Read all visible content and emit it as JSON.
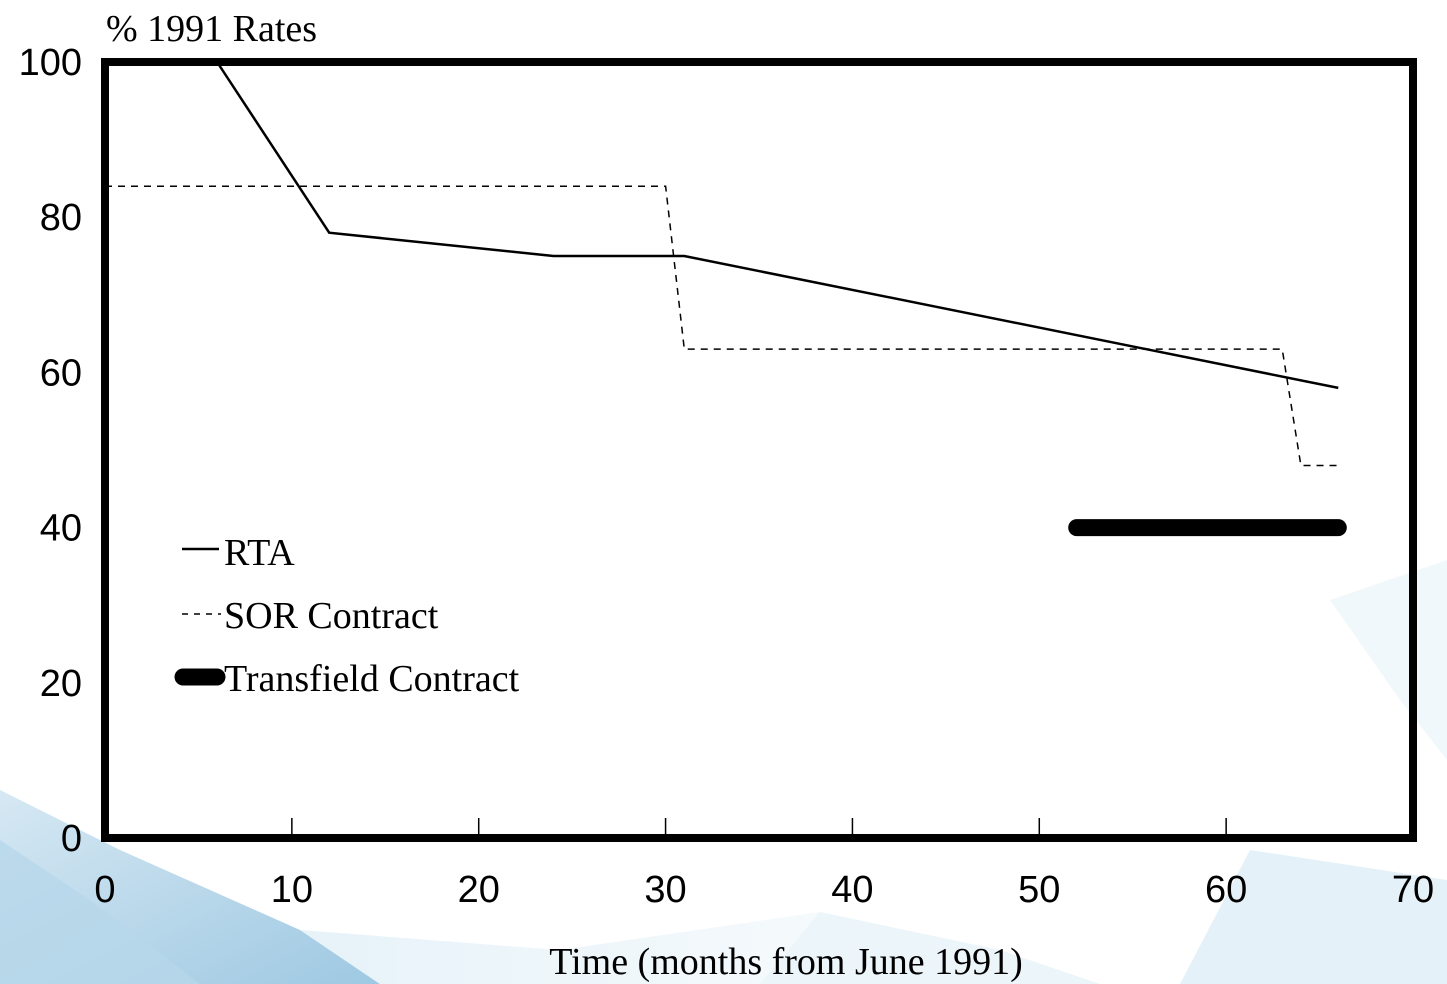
{
  "chart_data": {
    "type": "line",
    "title": "",
    "ylabel": "% 1991 Rates",
    "xlabel": "Time (months from June 1991)",
    "xlim": [
      0,
      70
    ],
    "ylim": [
      0,
      100
    ],
    "xticks": [
      0,
      10,
      20,
      30,
      40,
      50,
      60,
      70
    ],
    "yticks": [
      0,
      20,
      40,
      60,
      80,
      100
    ],
    "grid": false,
    "legend": {
      "placement": "lower-left",
      "entries": [
        "RTA",
        "SOR Contract",
        "Transfield Contract"
      ]
    },
    "series": [
      {
        "name": "RTA",
        "style": "solid",
        "color": "#000000",
        "points": [
          [
            6,
            100
          ],
          [
            12,
            78
          ],
          [
            24,
            75
          ],
          [
            31,
            75
          ],
          [
            66,
            58
          ]
        ]
      },
      {
        "name": "SOR Contract",
        "style": "dashed",
        "color": "#000000",
        "points": [
          [
            0,
            84
          ],
          [
            30,
            84
          ],
          [
            31,
            63
          ],
          [
            63,
            63
          ],
          [
            64,
            48
          ],
          [
            66,
            48
          ]
        ]
      },
      {
        "name": "Transfield Contract",
        "style": "thick",
        "color": "#000000",
        "points": [
          [
            52,
            40
          ],
          [
            66,
            40
          ]
        ]
      }
    ]
  }
}
